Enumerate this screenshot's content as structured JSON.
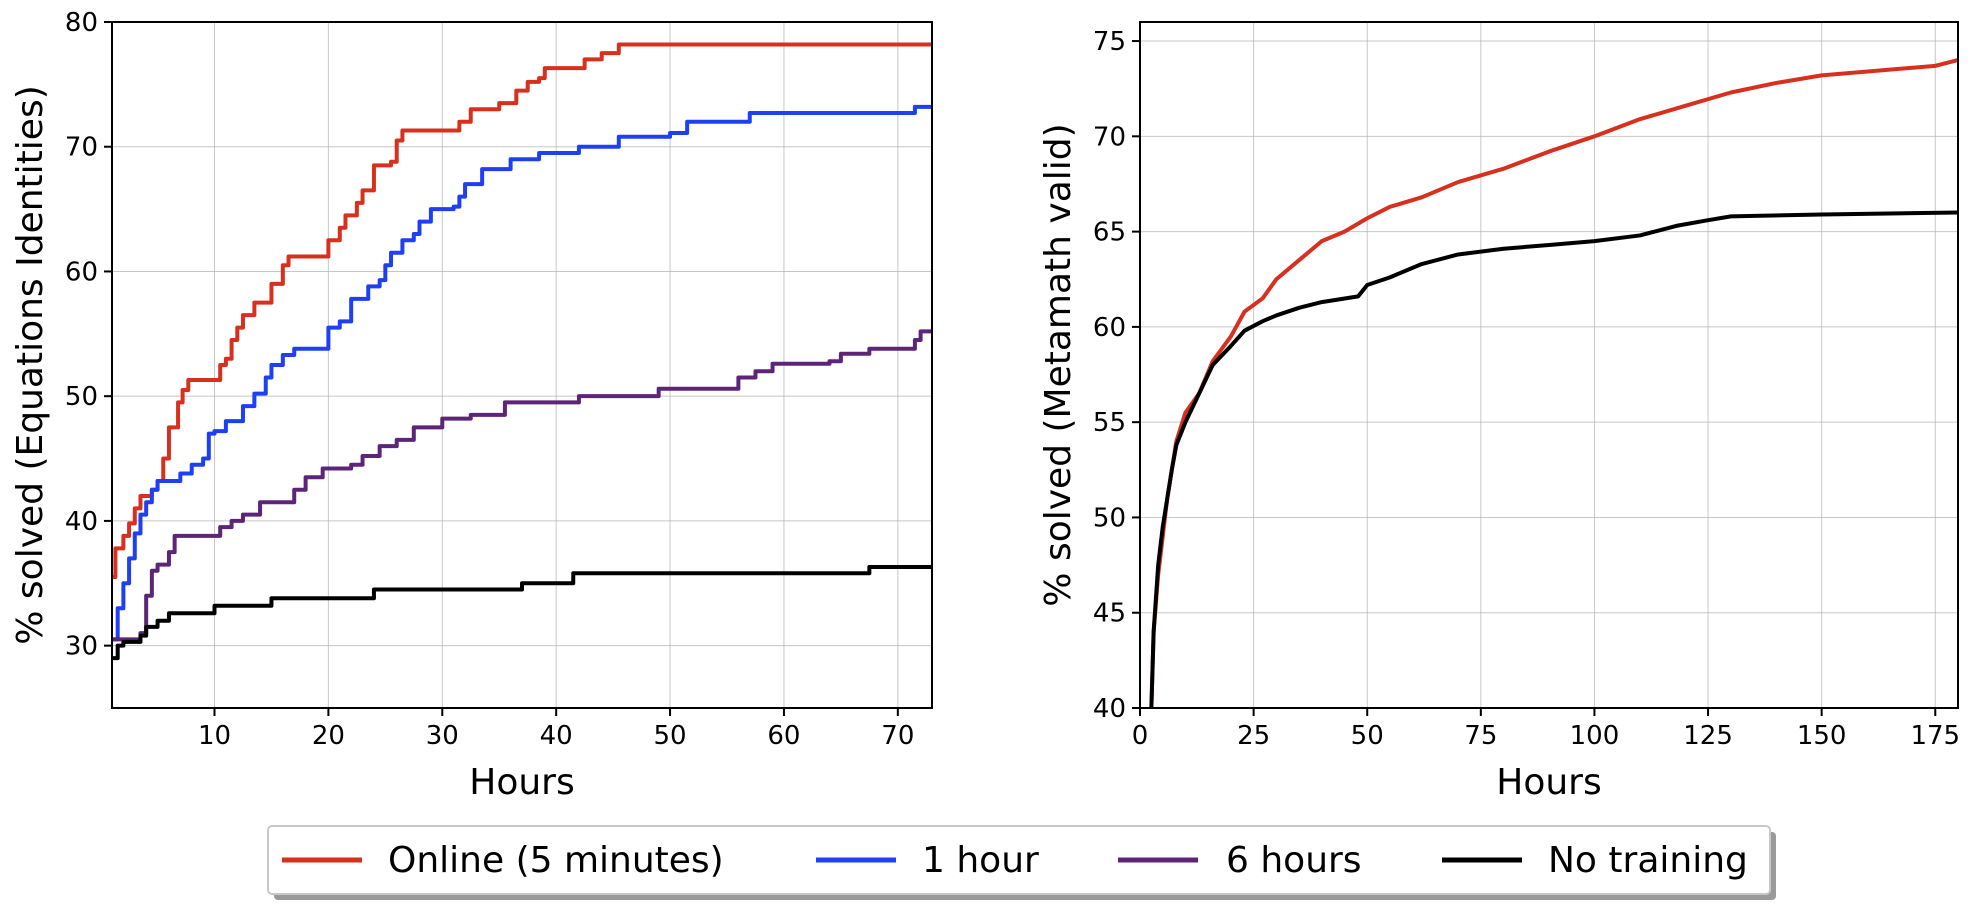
{
  "chart_data": [
    {
      "type": "line",
      "xlabel": "Hours",
      "ylabel": "% solved (Equations Identities)",
      "xlim": [
        1,
        73
      ],
      "ylim": [
        25,
        80
      ],
      "xticks": [
        10,
        20,
        30,
        40,
        50,
        60,
        70
      ],
      "yticks": [
        30,
        40,
        50,
        60,
        70,
        80
      ],
      "grid": true,
      "step": true,
      "series": [
        {
          "name": "Online (5 minutes)",
          "color": "#d7301f",
          "points": [
            [
              1,
              35.5
            ],
            [
              1.3,
              37.8
            ],
            [
              2,
              38.8
            ],
            [
              2.5,
              39.8
            ],
            [
              3,
              41
            ],
            [
              3.5,
              42
            ],
            [
              4,
              42
            ],
            [
              4.5,
              42.5
            ],
            [
              5,
              43.2
            ],
            [
              5.5,
              45
            ],
            [
              6,
              47.5
            ],
            [
              6.8,
              49.5
            ],
            [
              7.2,
              50.5
            ],
            [
              7.7,
              51.3
            ],
            [
              10,
              51.3
            ],
            [
              10.5,
              52.5
            ],
            [
              11,
              53
            ],
            [
              11.5,
              54.5
            ],
            [
              12,
              55.5
            ],
            [
              12.5,
              56.5
            ],
            [
              13.5,
              57.5
            ],
            [
              15,
              59
            ],
            [
              16,
              60.5
            ],
            [
              16.5,
              61.2
            ],
            [
              19.5,
              61.2
            ],
            [
              20,
              62.5
            ],
            [
              21,
              63.5
            ],
            [
              21.5,
              64.5
            ],
            [
              22.5,
              65.5
            ],
            [
              23,
              66.5
            ],
            [
              24,
              68.5
            ],
            [
              25.5,
              68.8
            ],
            [
              26,
              70.5
            ],
            [
              26.5,
              71.3
            ],
            [
              31,
              71.3
            ],
            [
              31.5,
              72
            ],
            [
              32.5,
              73
            ],
            [
              35,
              73.5
            ],
            [
              36.5,
              74.5
            ],
            [
              37.5,
              75.2
            ],
            [
              38.5,
              75.5
            ],
            [
              39,
              76.3
            ],
            [
              42,
              76.3
            ],
            [
              42.5,
              77
            ],
            [
              44,
              77.5
            ],
            [
              45.5,
              78.2
            ],
            [
              73,
              78.2
            ]
          ]
        },
        {
          "name": "1 hour",
          "color": "#1f3ff5",
          "points": [
            [
              1,
              30.5
            ],
            [
              1.5,
              33
            ],
            [
              2,
              35
            ],
            [
              2.5,
              37
            ],
            [
              3,
              39
            ],
            [
              3.5,
              40.5
            ],
            [
              4,
              41.5
            ],
            [
              4.5,
              42.5
            ],
            [
              5,
              43.2
            ],
            [
              7,
              43.8
            ],
            [
              8,
              44.5
            ],
            [
              9,
              45
            ],
            [
              9.5,
              47
            ],
            [
              10,
              47.2
            ],
            [
              11,
              48
            ],
            [
              12.5,
              49.2
            ],
            [
              13.5,
              50.2
            ],
            [
              14.5,
              51.5
            ],
            [
              15,
              52.5
            ],
            [
              16,
              53.3
            ],
            [
              17,
              53.8
            ],
            [
              19.5,
              53.8
            ],
            [
              20,
              55.5
            ],
            [
              21,
              56
            ],
            [
              22,
              57.8
            ],
            [
              23.5,
              58.8
            ],
            [
              24.5,
              59.3
            ],
            [
              25,
              60.5
            ],
            [
              25.5,
              61.5
            ],
            [
              26.5,
              62.5
            ],
            [
              27.5,
              63
            ],
            [
              28,
              64
            ],
            [
              29,
              65
            ],
            [
              31,
              65.2
            ],
            [
              31.5,
              66
            ],
            [
              32,
              67
            ],
            [
              33.5,
              68.2
            ],
            [
              36,
              69
            ],
            [
              38.5,
              69.5
            ],
            [
              42,
              70
            ],
            [
              45.5,
              70.8
            ],
            [
              50,
              71.1
            ],
            [
              51.5,
              72
            ],
            [
              57,
              72.7
            ],
            [
              71.5,
              73.2
            ],
            [
              73,
              73.2
            ]
          ]
        },
        {
          "name": "6 hours",
          "color": "#5c2578",
          "points": [
            [
              1,
              30.5
            ],
            [
              3.5,
              31
            ],
            [
              4,
              34
            ],
            [
              4.5,
              36
            ],
            [
              5,
              36.5
            ],
            [
              6,
              37.5
            ],
            [
              6.5,
              38.8
            ],
            [
              10,
              38.8
            ],
            [
              10.5,
              39.5
            ],
            [
              11.5,
              40
            ],
            [
              12.5,
              40.5
            ],
            [
              14,
              41.5
            ],
            [
              16,
              41.5
            ],
            [
              17,
              42.5
            ],
            [
              18,
              43.5
            ],
            [
              19.5,
              44.2
            ],
            [
              22,
              44.5
            ],
            [
              23,
              45.2
            ],
            [
              24.5,
              46
            ],
            [
              26,
              46.5
            ],
            [
              27.5,
              47.5
            ],
            [
              30,
              48.2
            ],
            [
              32.5,
              48.5
            ],
            [
              35.5,
              49.5
            ],
            [
              41,
              49.5
            ],
            [
              42,
              50
            ],
            [
              48.5,
              50
            ],
            [
              49,
              50.6
            ],
            [
              53,
              50.6
            ],
            [
              56,
              51.5
            ],
            [
              57.5,
              52
            ],
            [
              59,
              52.6
            ],
            [
              64,
              52.8
            ],
            [
              65,
              53.4
            ],
            [
              67.5,
              53.8
            ],
            [
              71.5,
              54.5
            ],
            [
              72,
              55.2
            ],
            [
              73,
              55.2
            ]
          ]
        },
        {
          "name": "No training",
          "color": "#000000",
          "points": [
            [
              1,
              29
            ],
            [
              1.5,
              30
            ],
            [
              2,
              30.3
            ],
            [
              3.5,
              30.8
            ],
            [
              4,
              31.5
            ],
            [
              5,
              32
            ],
            [
              6,
              32.6
            ],
            [
              9.5,
              32.6
            ],
            [
              10,
              33.2
            ],
            [
              14.5,
              33.2
            ],
            [
              15,
              33.8
            ],
            [
              23.5,
              33.8
            ],
            [
              24,
              34.5
            ],
            [
              36.5,
              34.5
            ],
            [
              37,
              35
            ],
            [
              41,
              35
            ],
            [
              41.5,
              35.8
            ],
            [
              67,
              35.8
            ],
            [
              67.5,
              36.3
            ],
            [
              73,
              36.3
            ]
          ]
        }
      ]
    },
    {
      "type": "line",
      "xlabel": "Hours",
      "ylabel": "% solved (Metamath valid)",
      "xlim": [
        0,
        180
      ],
      "ylim": [
        40,
        76
      ],
      "xticks": [
        0,
        25,
        50,
        75,
        100,
        125,
        150,
        175
      ],
      "yticks": [
        40,
        45,
        50,
        55,
        60,
        65,
        70,
        75
      ],
      "grid": true,
      "step": false,
      "series": [
        {
          "name": "Online (5 minutes)",
          "color": "#d7301f",
          "points": [
            [
              2.5,
              40
            ],
            [
              3,
              44
            ],
            [
              4,
              47
            ],
            [
              5,
              49
            ],
            [
              6,
              51
            ],
            [
              7,
              52.5
            ],
            [
              8,
              54
            ],
            [
              10,
              55.5
            ],
            [
              13,
              56.5
            ],
            [
              16,
              58.2
            ],
            [
              20,
              59.5
            ],
            [
              23,
              60.8
            ],
            [
              27,
              61.5
            ],
            [
              30,
              62.5
            ],
            [
              35,
              63.5
            ],
            [
              40,
              64.5
            ],
            [
              45,
              65
            ],
            [
              50,
              65.7
            ],
            [
              55,
              66.3
            ],
            [
              62,
              66.8
            ],
            [
              70,
              67.6
            ],
            [
              80,
              68.3
            ],
            [
              90,
              69.2
            ],
            [
              100,
              70
            ],
            [
              110,
              70.9
            ],
            [
              120,
              71.6
            ],
            [
              130,
              72.3
            ],
            [
              140,
              72.8
            ],
            [
              150,
              73.2
            ],
            [
              165,
              73.5
            ],
            [
              175,
              73.7
            ],
            [
              180,
              74
            ]
          ]
        },
        {
          "name": "No training",
          "color": "#000000",
          "points": [
            [
              2.5,
              40
            ],
            [
              3,
              44
            ],
            [
              4,
              47.5
            ],
            [
              5,
              49.5
            ],
            [
              6,
              51
            ],
            [
              7,
              52.5
            ],
            [
              8,
              53.8
            ],
            [
              10,
              55
            ],
            [
              13,
              56.5
            ],
            [
              16,
              58
            ],
            [
              20,
              59
            ],
            [
              23,
              59.8
            ],
            [
              27,
              60.3
            ],
            [
              30,
              60.6
            ],
            [
              35,
              61
            ],
            [
              40,
              61.3
            ],
            [
              48,
              61.6
            ],
            [
              50,
              62.2
            ],
            [
              55,
              62.6
            ],
            [
              62,
              63.3
            ],
            [
              70,
              63.8
            ],
            [
              80,
              64.1
            ],
            [
              90,
              64.3
            ],
            [
              100,
              64.5
            ],
            [
              110,
              64.8
            ],
            [
              118,
              65.3
            ],
            [
              125,
              65.6
            ],
            [
              130,
              65.8
            ],
            [
              150,
              65.9
            ],
            [
              180,
              66
            ]
          ]
        }
      ]
    }
  ],
  "legend": {
    "position": "bottom-center",
    "items": [
      {
        "label": "Online (5 minutes)",
        "color": "#d7301f"
      },
      {
        "label": "1 hour",
        "color": "#1f3ff5"
      },
      {
        "label": "6 hours",
        "color": "#5c2578"
      },
      {
        "label": "No training",
        "color": "#000000"
      }
    ]
  }
}
